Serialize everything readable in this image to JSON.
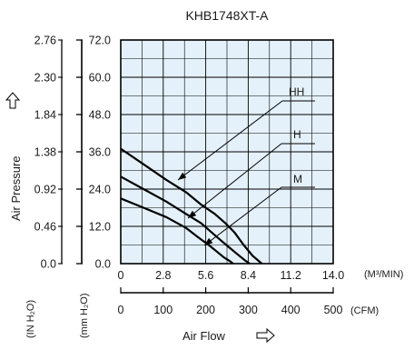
{
  "chart_data": {
    "type": "line",
    "title": "KHB1748XT-A",
    "xlabel": "Air Flow",
    "ylabel": "Air Pressure",
    "x_unit_primary": "(M³/MIN)",
    "x_unit_secondary": "(CFM)",
    "y_unit_primary": "(mm H₂O)",
    "y_unit_secondary": "(IN H₂O)",
    "xlim": [
      0,
      14.0
    ],
    "ylim": [
      0,
      72.0
    ],
    "x_ticks": [
      "0",
      "2.8",
      "5.6",
      "8.4",
      "11.2",
      "14.0"
    ],
    "x_ticks_cfm": [
      "0",
      "100",
      "200",
      "300",
      "400",
      "500"
    ],
    "y_ticks_mm": [
      "0.0",
      "12.0",
      "24.0",
      "36.0",
      "48.0",
      "60.0",
      "72.0"
    ],
    "y_ticks_in": [
      "0.0",
      "0.46",
      "0.92",
      "1.38",
      "1.84",
      "2.30",
      "2.76"
    ],
    "grid": true,
    "series": [
      {
        "name": "HH",
        "x": [
          0,
          1.5,
          3.0,
          4.3,
          5.3,
          6.2,
          6.9,
          7.5,
          8.1,
          8.7,
          9.3
        ],
        "y": [
          37,
          32,
          27,
          23,
          19,
          16,
          13,
          10,
          6,
          2.5,
          0
        ]
      },
      {
        "name": "H",
        "x": [
          0,
          1.5,
          3.0,
          4.3,
          5.3,
          6.0,
          6.6,
          7.2,
          7.7,
          8.2,
          8.5
        ],
        "y": [
          28,
          24,
          20,
          16,
          13,
          10,
          7.5,
          5,
          3,
          1,
          0
        ]
      },
      {
        "name": "M",
        "x": [
          0,
          1.5,
          3.0,
          4.3,
          5.1,
          5.8,
          6.3,
          6.8,
          7.2,
          7.4
        ],
        "y": [
          21,
          18,
          15,
          11.5,
          8.5,
          6,
          4,
          2,
          0.8,
          0
        ]
      }
    ]
  }
}
